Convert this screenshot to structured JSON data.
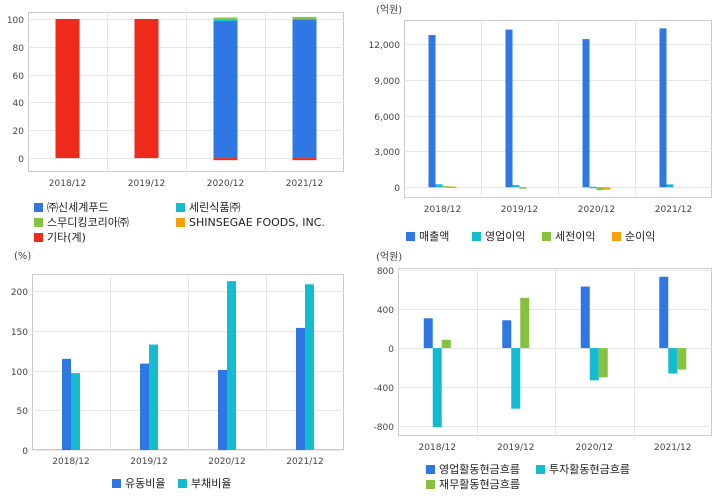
{
  "colors": {
    "blue": "#2f78e3",
    "cyan": "#14bcd0",
    "green": "#86c240",
    "orange": "#f5a20a",
    "red": "#ee2b1b",
    "grid": "#e6e6e6",
    "frame": "#cccccc"
  },
  "chart_data": [
    {
      "id": "shareholders",
      "type": "bar",
      "stacked": true,
      "unit": "",
      "categories": [
        "2018/12",
        "2019/12",
        "2020/12",
        "2021/12"
      ],
      "ylim": [
        -10,
        105
      ],
      "yticks": [
        "0",
        "20",
        "40",
        "60",
        "80",
        "100"
      ],
      "ytick_values": [
        0,
        20,
        40,
        60,
        80,
        100
      ],
      "series": [
        {
          "name": "㈜신세계푸드",
          "color": "#2f78e3",
          "values": [
            0,
            0,
            98.5,
            99.5
          ]
        },
        {
          "name": "세린식품㈜",
          "color": "#14bcd0",
          "values": [
            0,
            0,
            1.0,
            0.5
          ]
        },
        {
          "name": "스무디킹코리아㈜",
          "color": "#86c240",
          "values": [
            0,
            0,
            1.5,
            1.5
          ]
        },
        {
          "name": "SHINSEGAE FOODS, INC.",
          "color": "#f5a20a",
          "values": [
            0,
            0,
            0,
            0
          ]
        },
        {
          "name": "기타(계)",
          "color": "#ee2b1b",
          "values": [
            100,
            100,
            -1.5,
            -1.5
          ]
        }
      ]
    },
    {
      "id": "income",
      "type": "bar",
      "unit": "(억원)",
      "categories": [
        "2018/12",
        "2019/12",
        "2020/12",
        "2021/12"
      ],
      "ylim": [
        -900,
        14000
      ],
      "yticks": [
        "0",
        "3,000",
        "6,000",
        "9,000",
        "12,000"
      ],
      "ytick_values": [
        0,
        3000,
        6000,
        9000,
        12000
      ],
      "series": [
        {
          "name": "매출액",
          "color": "#2f78e3",
          "values": [
            12740,
            13200,
            12400,
            13300
          ]
        },
        {
          "name": "영업이익",
          "color": "#14bcd0",
          "values": [
            250,
            180,
            40,
            240
          ]
        },
        {
          "name": "세전이익",
          "color": "#86c240",
          "values": [
            90,
            10,
            -250,
            0
          ]
        },
        {
          "name": "순이익",
          "color": "#f5a20a",
          "values": [
            60,
            0,
            -200,
            0
          ]
        }
      ]
    },
    {
      "id": "ratios",
      "type": "bar",
      "unit": "(%)",
      "categories": [
        "2018/12",
        "2019/12",
        "2020/12",
        "2021/12"
      ],
      "ylim": [
        0,
        222
      ],
      "yticks": [
        "0",
        "50",
        "100",
        "150",
        "200"
      ],
      "ytick_values": [
        0,
        50,
        100,
        150,
        200
      ],
      "series": [
        {
          "name": "유동비율",
          "color": "#2f78e3",
          "values": [
            115,
            109,
            101,
            154
          ]
        },
        {
          "name": "부채비율",
          "color": "#14bcd0",
          "values": [
            97,
            133,
            213,
            209
          ]
        }
      ]
    },
    {
      "id": "cashflow",
      "type": "bar",
      "unit": "(억원)",
      "categories": [
        "2018/12",
        "2019/12",
        "2020/12",
        "2021/12"
      ],
      "ylim": [
        -900,
        820
      ],
      "yticks": [
        "-800",
        "-400",
        "0",
        "400",
        "800"
      ],
      "ytick_values": [
        -800,
        -400,
        0,
        400,
        800
      ],
      "series": [
        {
          "name": "영업활동현금흐름",
          "color": "#2f78e3",
          "values": [
            305,
            285,
            630,
            730
          ]
        },
        {
          "name": "투자활동현금흐름",
          "color": "#14bcd0",
          "values": [
            -810,
            -620,
            -330,
            -260
          ]
        },
        {
          "name": "재무활동현금흐름",
          "color": "#86c240",
          "values": [
            85,
            515,
            -300,
            -220
          ]
        }
      ]
    }
  ],
  "legends": {
    "shareholders": [
      "㈜신세계푸드",
      "세린식품㈜",
      "스무디킹코리아㈜",
      "SHINSEGAE FOODS, INC.",
      "기타(계)"
    ],
    "income": [
      "매출액",
      "영업이익",
      "세전이익",
      "순이익"
    ],
    "ratios": [
      "유동비율",
      "부채비율"
    ],
    "cashflow": [
      "영업활동현금흐름",
      "투자활동현금흐름",
      "재무활동현금흐름"
    ]
  }
}
